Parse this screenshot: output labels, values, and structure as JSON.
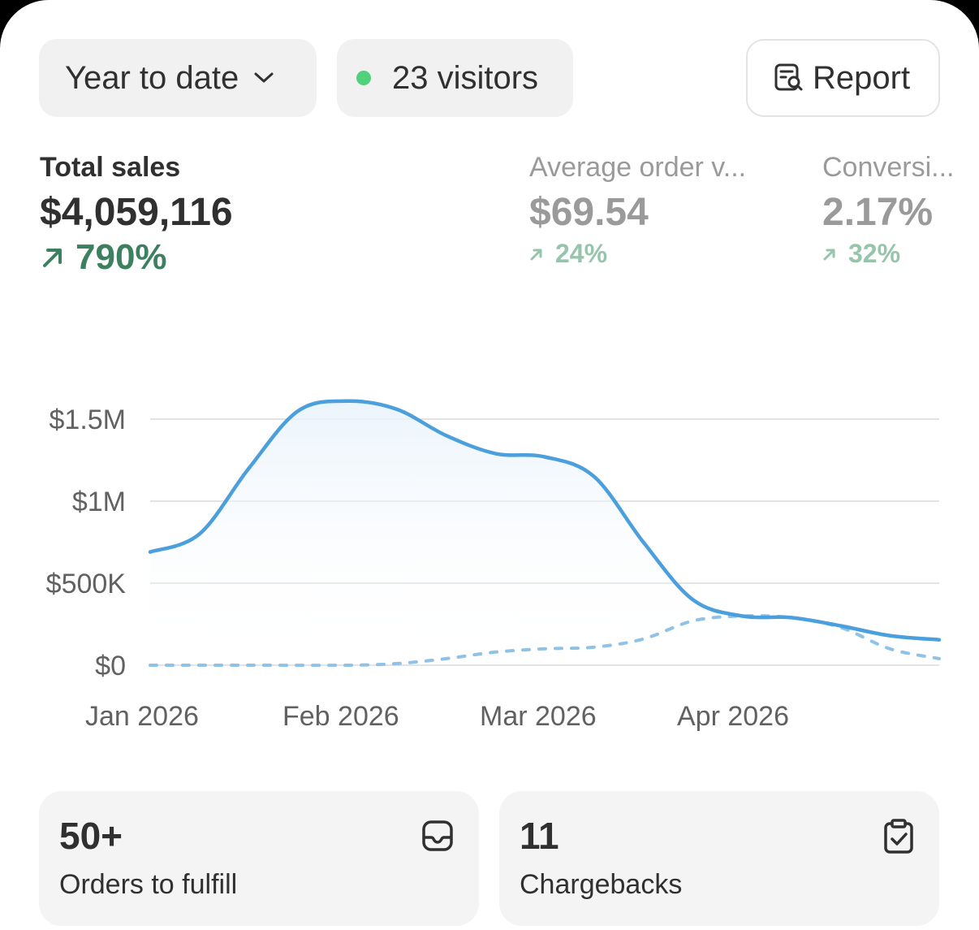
{
  "toolbar": {
    "date_range": "Year to date",
    "visitors": "23 visitors",
    "report": "Report",
    "accent_live": "#4fd17d"
  },
  "metrics": {
    "total_sales": {
      "label": "Total sales",
      "value": "$4,059,116",
      "change": "790%"
    },
    "average_order": {
      "label": "Average order v...",
      "value": "$69.54",
      "change": "24%"
    },
    "conversion": {
      "label": "Conversi...",
      "value": "2.17%",
      "change": "32%"
    }
  },
  "chart_data": {
    "type": "line",
    "y_tick_labels": [
      "$0",
      "$500K",
      "$1M",
      "$1.5M"
    ],
    "y_ticks": [
      0,
      500000,
      1000000,
      1500000
    ],
    "ylim": [
      0,
      1500000
    ],
    "x_tick_labels": [
      "Jan 2026",
      "Feb 2026",
      "Mar 2026",
      "Apr 2026"
    ],
    "x_tick_positions": [
      0,
      1,
      2,
      3
    ],
    "xlim": [
      0,
      4
    ],
    "grid": true,
    "series": [
      {
        "style": "solid",
        "color": "#4a9fdc",
        "fill": true,
        "x": [
          0,
          0.25,
          0.5,
          0.75,
          1.0,
          1.25,
          1.5,
          1.75,
          2.0,
          2.25,
          2.5,
          2.75,
          3.0,
          3.25,
          3.5,
          3.75,
          4.0
        ],
        "values": [
          690000,
          800000,
          1200000,
          1550000,
          1610000,
          1560000,
          1400000,
          1290000,
          1270000,
          1150000,
          750000,
          400000,
          300000,
          290000,
          240000,
          180000,
          155000
        ]
      },
      {
        "style": "dashed",
        "color": "#8fc2e6",
        "fill": false,
        "x": [
          0,
          0.5,
          1.0,
          1.25,
          1.5,
          1.75,
          2.0,
          2.25,
          2.5,
          2.75,
          3.0,
          3.25,
          3.5,
          3.75,
          4.0
        ],
        "values": [
          0,
          0,
          0,
          10000,
          40000,
          80000,
          100000,
          110000,
          160000,
          270000,
          300000,
          290000,
          230000,
          100000,
          40000
        ]
      }
    ]
  },
  "tiles": {
    "orders": {
      "count": "50+",
      "caption": "Orders to fulfill"
    },
    "chargebacks": {
      "count": "11",
      "caption": "Chargebacks"
    }
  }
}
